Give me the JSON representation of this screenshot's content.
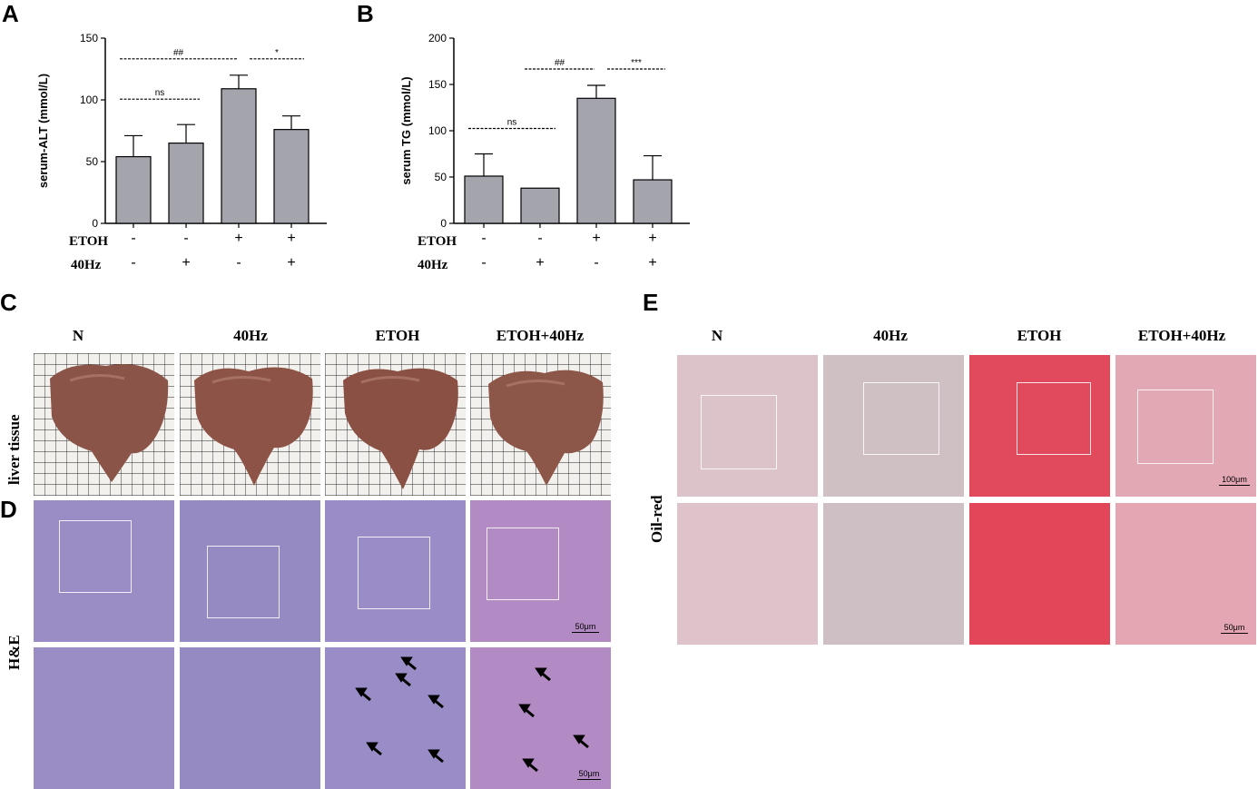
{
  "panels": {
    "A": "A",
    "B": "B",
    "C": "C",
    "D": "D",
    "E": "E"
  },
  "chart_data": [
    {
      "type": "bar",
      "panel": "A",
      "categories": [
        "ETOH- / 40Hz-",
        "ETOH- / 40Hz+",
        "ETOH+ / 40Hz-",
        "ETOH+ / 40Hz+"
      ],
      "values": [
        54,
        65,
        109,
        76
      ],
      "errors": [
        17,
        15,
        11,
        11
      ],
      "ylabel": "serum-ALT (mmol/L)",
      "ylim": [
        0,
        150
      ],
      "yticks": [
        "0",
        "50",
        "100",
        "150"
      ],
      "significance": [
        {
          "from": 0,
          "to": 2,
          "label": "##"
        },
        {
          "from": 2,
          "to": 3,
          "label": "*"
        },
        {
          "from": 0,
          "to": 1,
          "label": "ns"
        }
      ],
      "bar_color": "#a4a4ad"
    },
    {
      "type": "bar",
      "panel": "B",
      "categories": [
        "ETOH- / 40Hz-",
        "ETOH- / 40Hz+",
        "ETOH+ / 40Hz-",
        "ETOH+ / 40Hz+"
      ],
      "values": [
        51,
        38,
        135,
        47
      ],
      "errors": [
        24,
        0,
        14,
        26
      ],
      "ylabel": "serum TG (mmol/L)",
      "ylim": [
        0,
        200
      ],
      "yticks": [
        "0",
        "50",
        "100",
        "150",
        "200"
      ],
      "significance": [
        {
          "from": 1,
          "to": 2,
          "label": "##"
        },
        {
          "from": 2,
          "to": 3,
          "label": "***"
        },
        {
          "from": 0,
          "to": 1,
          "label": "ns"
        }
      ],
      "bar_color": "#a4a4ad"
    }
  ],
  "conditions": {
    "etoh_label": "ETOH",
    "hz_label": "40Hz",
    "etoh_signs": [
      "-",
      "-",
      "+",
      "+"
    ],
    "hz_signs": [
      "-",
      "+",
      "-",
      "+"
    ]
  },
  "groups": [
    "N",
    "40Hz",
    "ETOH",
    "ETOH+40Hz"
  ],
  "rows": {
    "liver": "liver tissue",
    "he": "H&E",
    "oil": "Oil-red"
  },
  "scalebars": {
    "d_top": "50μm",
    "d_bottom": "50μm",
    "e_top": "100μm",
    "e_bottom": "50μm"
  },
  "colors": {
    "he_stain": "#9a8cc4",
    "oil_normal": "#dcc3c9",
    "oil_etoh": "#e04a5c",
    "liver": "#8a5548",
    "grid_paper": "#f3f1ee"
  }
}
